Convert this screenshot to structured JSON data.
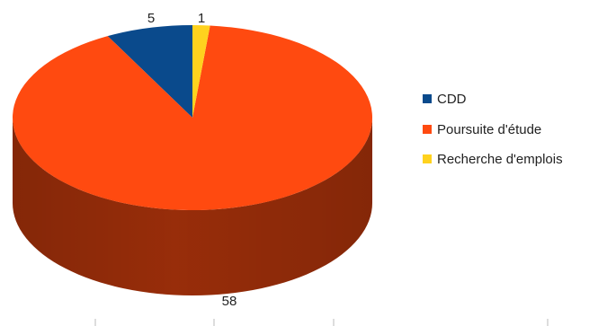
{
  "chart_data": {
    "type": "pie",
    "variant": "3d",
    "title": "",
    "categories": [
      "CDD",
      "Poursuite d'étude",
      "Recherche d'emplois"
    ],
    "values": [
      5,
      58,
      1
    ],
    "data_labels": [
      "5",
      "58",
      "1"
    ],
    "colors": [
      "#0a4a8c",
      "#ff4a10",
      "#ffd21e"
    ],
    "side_colors": [
      "#052a55",
      "#b0340b",
      "#b89300"
    ],
    "legend": {
      "placement": "right",
      "entries": [
        "CDD",
        "Poursuite d'étude",
        "Recherche d'emplois"
      ]
    }
  }
}
